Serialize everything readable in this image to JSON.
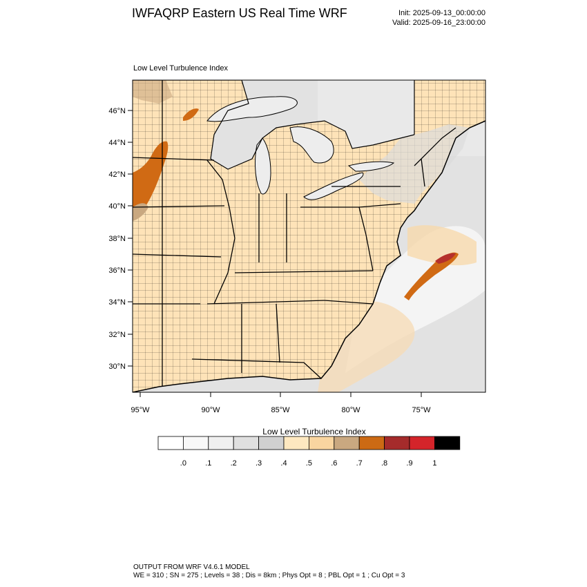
{
  "header": {
    "title": "IWFAQRP Eastern US Real Time WRF",
    "init": "Init: 2025-09-13_00:00:00",
    "valid": "Valid: 2025-09-16_23:00:00"
  },
  "map": {
    "field_label": "Low Level Turbulence Index",
    "lat_labels": [
      "46°N",
      "44°N",
      "42°N",
      "40°N",
      "38°N",
      "36°N",
      "34°N",
      "32°N",
      "30°N"
    ],
    "lon_labels": [
      "95°W",
      "90°W",
      "85°W",
      "80°W",
      "75°W"
    ],
    "colors": {
      "land": "#fee3b8",
      "water_low": "#e2e2e2",
      "lakes": "#ededed",
      "high": "#d06a14",
      "max": "#b5302b"
    }
  },
  "colorbar": {
    "title": "Low Level Turbulence Index",
    "labels": [
      ".0",
      ".1",
      ".2",
      ".3",
      ".4",
      ".5",
      ".6",
      ".7",
      ".8",
      ".9",
      "1"
    ],
    "colors": [
      "#ffffff",
      "#f8f8f8",
      "#f0f0f0",
      "#e0e0e0",
      "#d0d0d0",
      "#fee8c0",
      "#f9d5a0",
      "#c9a880",
      "#cc6a14",
      "#a52b2b",
      "#d4242a",
      "#000000"
    ]
  },
  "footer": {
    "line1": "OUTPUT FROM WRF V4.6.1 MODEL",
    "line2": "WE = 310 ; SN = 275 ; Levels = 38 ; Dis = 8km ; Phys Opt = 8 ; PBL Opt = 1 ; Cu Opt = 3"
  }
}
